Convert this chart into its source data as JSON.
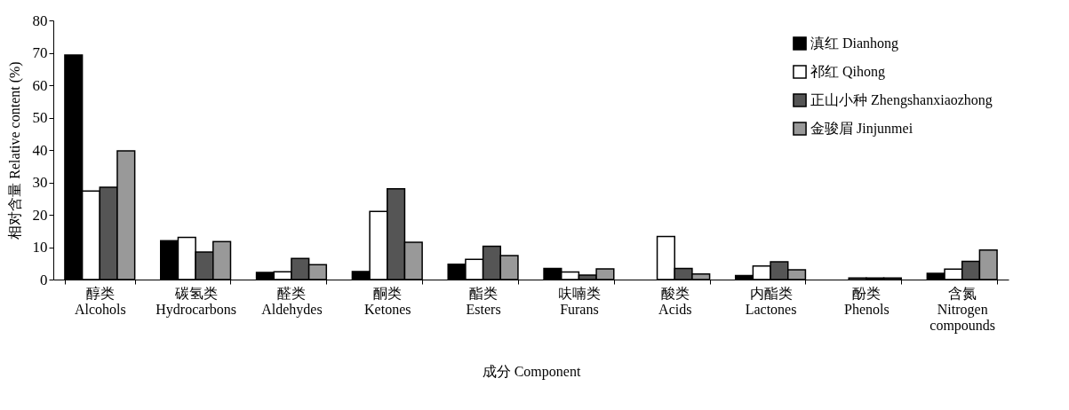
{
  "chart_data": {
    "type": "bar",
    "xlabel": "成分 Component",
    "ylabel": "相对含量 Relative content (%)",
    "categories": [
      "醇类\nAlcohols",
      "碳氢类\nHydrocarbons",
      "醛类\nAldehydes",
      "酮类\nKetones",
      "酯类\nEsters",
      "呋喃类\nFurans",
      "酸类\nAcids",
      "内酯类\nLactones",
      "酚类\nPhenols",
      "含氮\nNitrogen\ncompounds"
    ],
    "series": [
      {
        "name": "滇红 Dianhong",
        "color": "#000000",
        "values": [
          69.3,
          12,
          2.2,
          2.5,
          4.7,
          3.4,
          null,
          1.2,
          null,
          1.9
        ]
      },
      {
        "name": "祁红 Qihong",
        "color": "#ffffff",
        "values": [
          27.3,
          13,
          2.4,
          21,
          6.2,
          2.3,
          13.3,
          4.2,
          0.5,
          3.2
        ]
      },
      {
        "name": "正山小种 Zhengshanxiaozhong",
        "color": "#555555",
        "values": [
          28.5,
          8.5,
          6.5,
          28,
          10.3,
          1.4,
          3.4,
          5.5,
          0.5,
          5.6
        ]
      },
      {
        "name": "金骏眉 Jinjunmei",
        "color": "#999999",
        "values": [
          39.7,
          11.7,
          4.6,
          11.5,
          7.4,
          3.3,
          1.7,
          3.0,
          0.5,
          9.1
        ]
      }
    ],
    "ylim": [
      0,
      80
    ],
    "yticks": [
      0,
      10,
      20,
      30,
      40,
      50,
      60,
      70,
      80
    ],
    "grid": false,
    "legend": "top right"
  }
}
